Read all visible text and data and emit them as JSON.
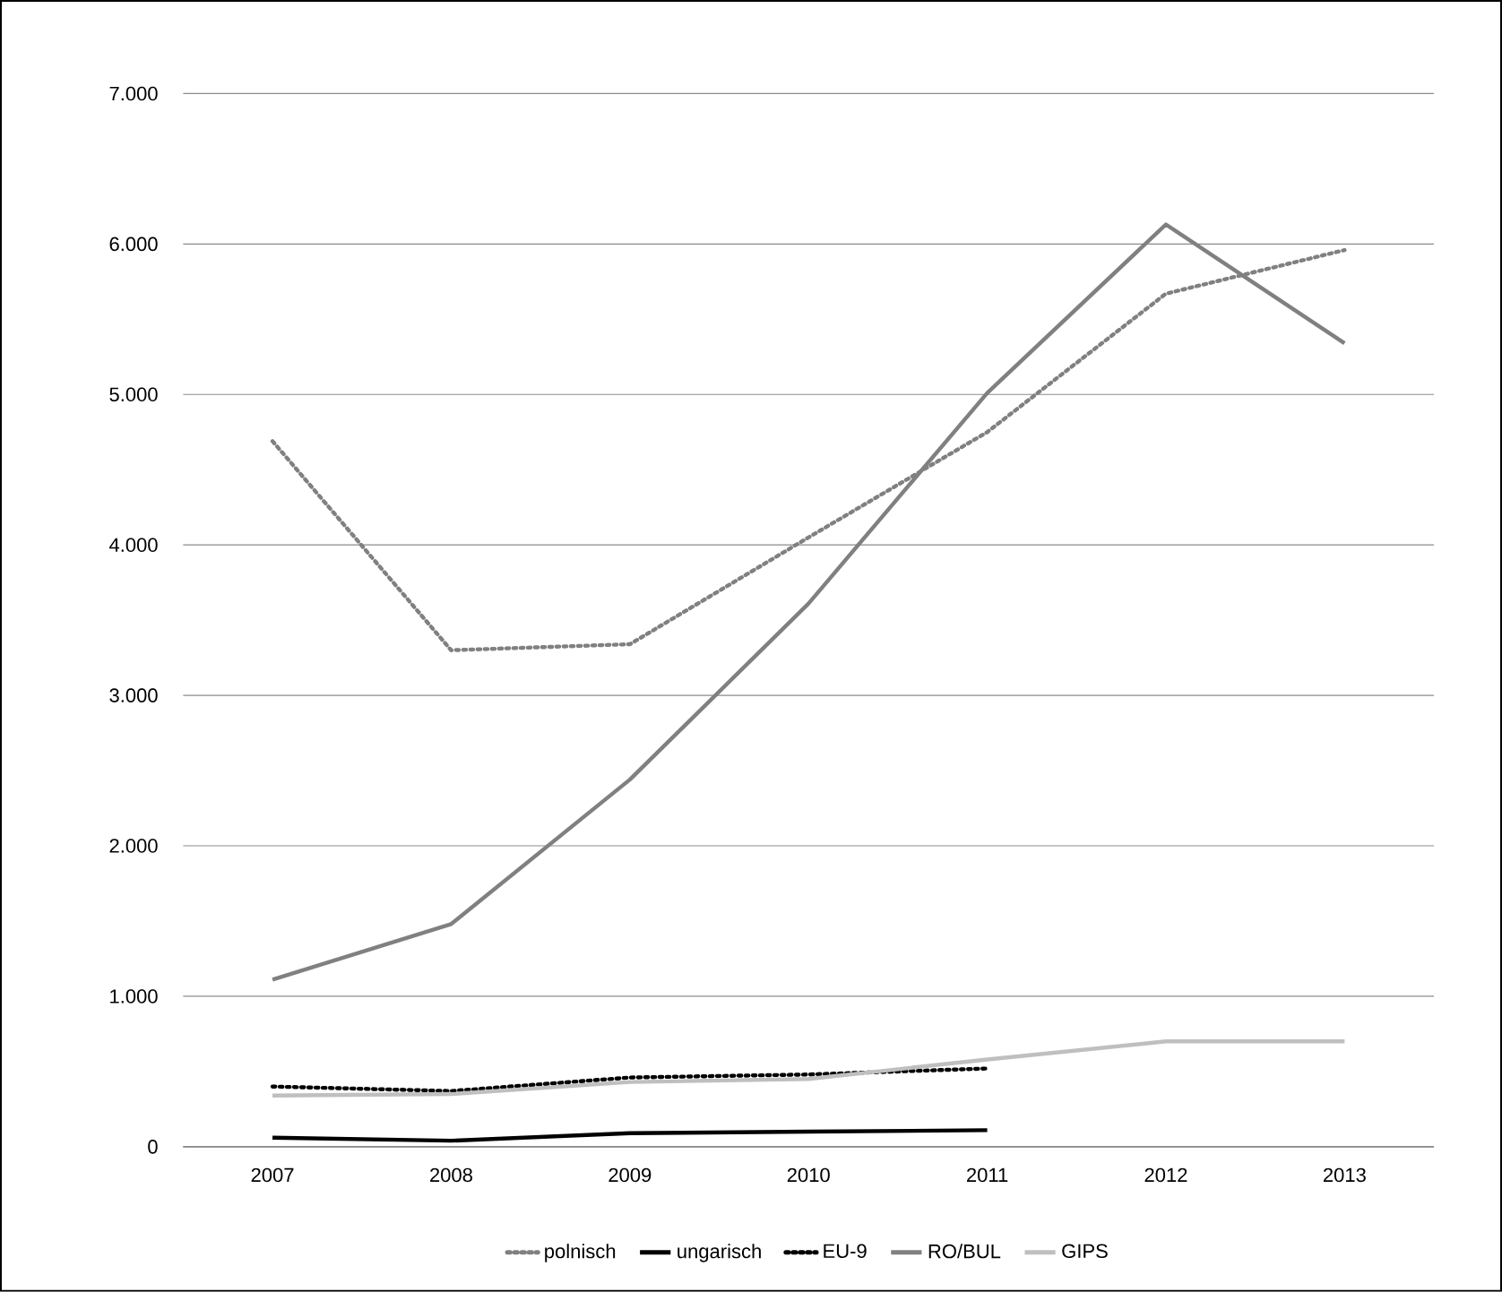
{
  "chart_data": {
    "type": "line",
    "categories": [
      "2007",
      "2008",
      "2009",
      "2010",
      "2011",
      "2012",
      "2013"
    ],
    "series": [
      {
        "name": "polnisch",
        "color": "#808080",
        "line_style": "dotted",
        "values": [
          4690,
          3300,
          3340,
          4050,
          4750,
          5670,
          5960
        ]
      },
      {
        "name": "ungarisch",
        "color": "#000000",
        "line_style": "solid",
        "values": [
          60,
          40,
          90,
          100,
          110,
          null,
          null
        ]
      },
      {
        "name": "EU-9",
        "color": "#000000",
        "line_style": "dotted",
        "values": [
          400,
          370,
          460,
          480,
          520,
          null,
          null
        ]
      },
      {
        "name": "RO/BUL",
        "color": "#808080",
        "line_style": "solid",
        "values": [
          1110,
          1480,
          2440,
          3610,
          5010,
          6130,
          5340
        ]
      },
      {
        "name": "GIPS",
        "color": "#bfbfbf",
        "line_style": "solid",
        "values": [
          340,
          350,
          430,
          450,
          580,
          700,
          700
        ]
      }
    ],
    "ylim": [
      0,
      7000
    ],
    "yticks": [
      0,
      {
        "value": 1000,
        "label": "1.000"
      },
      {
        "value": 2000,
        "label": "2.000"
      },
      {
        "value": 3000,
        "label": "3.000"
      },
      {
        "value": 4000,
        "label": "4.000"
      },
      {
        "value": 5000,
        "label": "5.000"
      },
      {
        "value": 6000,
        "label": "6.000"
      },
      {
        "value": 7000,
        "label": "7.000"
      }
    ],
    "grid": "y",
    "legend": "bottom",
    "marker": "none"
  }
}
